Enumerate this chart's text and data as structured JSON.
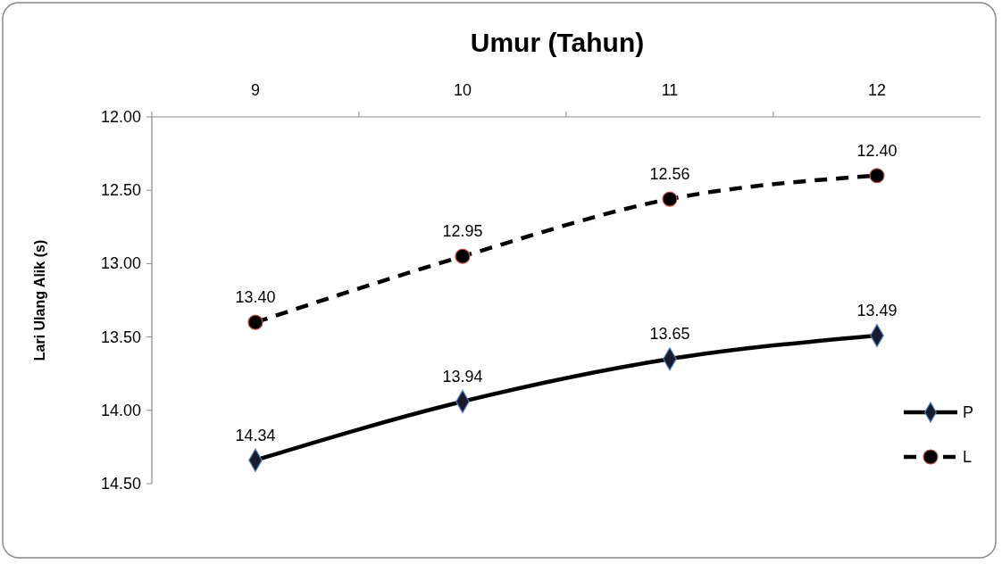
{
  "chart_data": {
    "type": "line",
    "title": "Umur (Tahun)",
    "ylabel": "Lari Ulang Alik (s)",
    "categories": [
      "9",
      "10",
      "11",
      "12"
    ],
    "ylim": [
      14.5,
      12
    ],
    "yticks": [
      {
        "value": 12,
        "label": "12.00"
      },
      {
        "value": 12.5,
        "label": "12.50"
      },
      {
        "value": 13,
        "label": "13.00"
      },
      {
        "value": 13.5,
        "label": "13.50"
      },
      {
        "value": 14,
        "label": "14.00"
      },
      {
        "value": 14.5,
        "label": "14.50"
      }
    ],
    "series": [
      {
        "name": "P",
        "color": "#000000",
        "values": [
          14.34,
          13.94,
          13.65,
          13.49
        ],
        "value_labels": [
          "14.34",
          "13.94",
          "13.65",
          "13.49"
        ],
        "marker": "diamond",
        "line_style": "solid"
      },
      {
        "name": "L",
        "color": "#000000",
        "values": [
          13.4,
          12.95,
          12.56,
          12.4
        ],
        "value_labels": [
          "13.40",
          "12.95",
          "12.56",
          "12.40"
        ],
        "marker": "circle",
        "line_style": "dashed"
      }
    ],
    "legend": "right",
    "grid": false
  }
}
